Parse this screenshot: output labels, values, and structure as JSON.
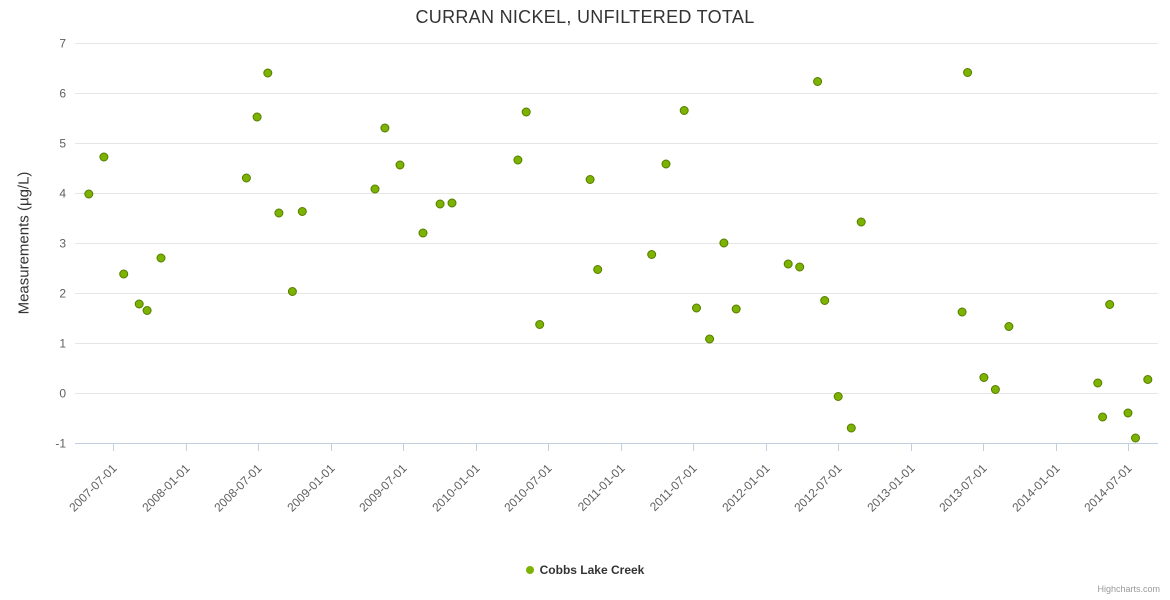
{
  "credits": "Highcharts.com",
  "colors": {
    "marker": "#7cb300",
    "marker_border": "#567c00",
    "grid": "#e6e6e6",
    "axis_line": "#c0d0e0",
    "label": "#606060",
    "title": "#333333"
  },
  "chart_data": {
    "type": "scatter",
    "title": "CURRAN NICKEL, UNFILTERED TOTAL",
    "xlabel": "",
    "ylabel": "Measurements (µg/L)",
    "ylim": [
      -1,
      7
    ],
    "y_ticks": [
      -1,
      0,
      1,
      2,
      3,
      4,
      5,
      6,
      7
    ],
    "x_ticks": [
      "2007-07-01",
      "2008-01-01",
      "2008-07-01",
      "2009-01-01",
      "2009-07-01",
      "2010-01-01",
      "2010-07-01",
      "2011-01-01",
      "2011-07-01",
      "2012-01-01",
      "2012-07-01",
      "2013-01-01",
      "2013-07-01",
      "2014-01-01",
      "2014-07-01"
    ],
    "grid": "horizontal",
    "legend_position": "bottom",
    "series": [
      {
        "name": "Cobbs Lake Creek",
        "points": [
          [
            "2007-05-01",
            3.98
          ],
          [
            "2007-06-08",
            4.72
          ],
          [
            "2007-07-28",
            2.38
          ],
          [
            "2007-09-05",
            1.78
          ],
          [
            "2007-09-25",
            1.65
          ],
          [
            "2007-10-30",
            2.7
          ],
          [
            "2008-06-01",
            4.3
          ],
          [
            "2008-06-28",
            5.52
          ],
          [
            "2008-07-25",
            6.4
          ],
          [
            "2008-08-22",
            3.6
          ],
          [
            "2008-09-25",
            2.03
          ],
          [
            "2008-10-20",
            3.63
          ],
          [
            "2009-04-21",
            4.08
          ],
          [
            "2009-05-16",
            5.3
          ],
          [
            "2009-06-23",
            4.56
          ],
          [
            "2009-08-20",
            3.2
          ],
          [
            "2009-10-02",
            3.78
          ],
          [
            "2009-11-01",
            3.8
          ],
          [
            "2010-04-16",
            4.66
          ],
          [
            "2010-05-07",
            5.62
          ],
          [
            "2010-06-10",
            1.37
          ],
          [
            "2010-10-15",
            4.27
          ],
          [
            "2010-11-03",
            2.47
          ],
          [
            "2011-03-19",
            2.77
          ],
          [
            "2011-04-24",
            4.58
          ],
          [
            "2011-06-09",
            5.65
          ],
          [
            "2011-07-10",
            1.7
          ],
          [
            "2011-08-12",
            1.08
          ],
          [
            "2011-09-17",
            3.0
          ],
          [
            "2011-10-18",
            1.68
          ],
          [
            "2012-02-26",
            2.58
          ],
          [
            "2012-03-26",
            2.52
          ],
          [
            "2012-05-10",
            6.23
          ],
          [
            "2012-05-28",
            1.85
          ],
          [
            "2012-07-01",
            -0.07
          ],
          [
            "2012-08-03",
            -0.7
          ],
          [
            "2012-08-28",
            3.42
          ],
          [
            "2013-05-09",
            1.62
          ],
          [
            "2013-05-23",
            6.41
          ],
          [
            "2013-07-03",
            0.31
          ],
          [
            "2013-08-01",
            0.07
          ],
          [
            "2013-09-04",
            1.33
          ],
          [
            "2014-04-16",
            0.2
          ],
          [
            "2014-04-28",
            -0.48
          ],
          [
            "2014-05-16",
            1.77
          ],
          [
            "2014-07-01",
            -0.4
          ],
          [
            "2014-07-20",
            -0.9
          ],
          [
            "2014-08-20",
            0.27
          ]
        ]
      }
    ]
  }
}
